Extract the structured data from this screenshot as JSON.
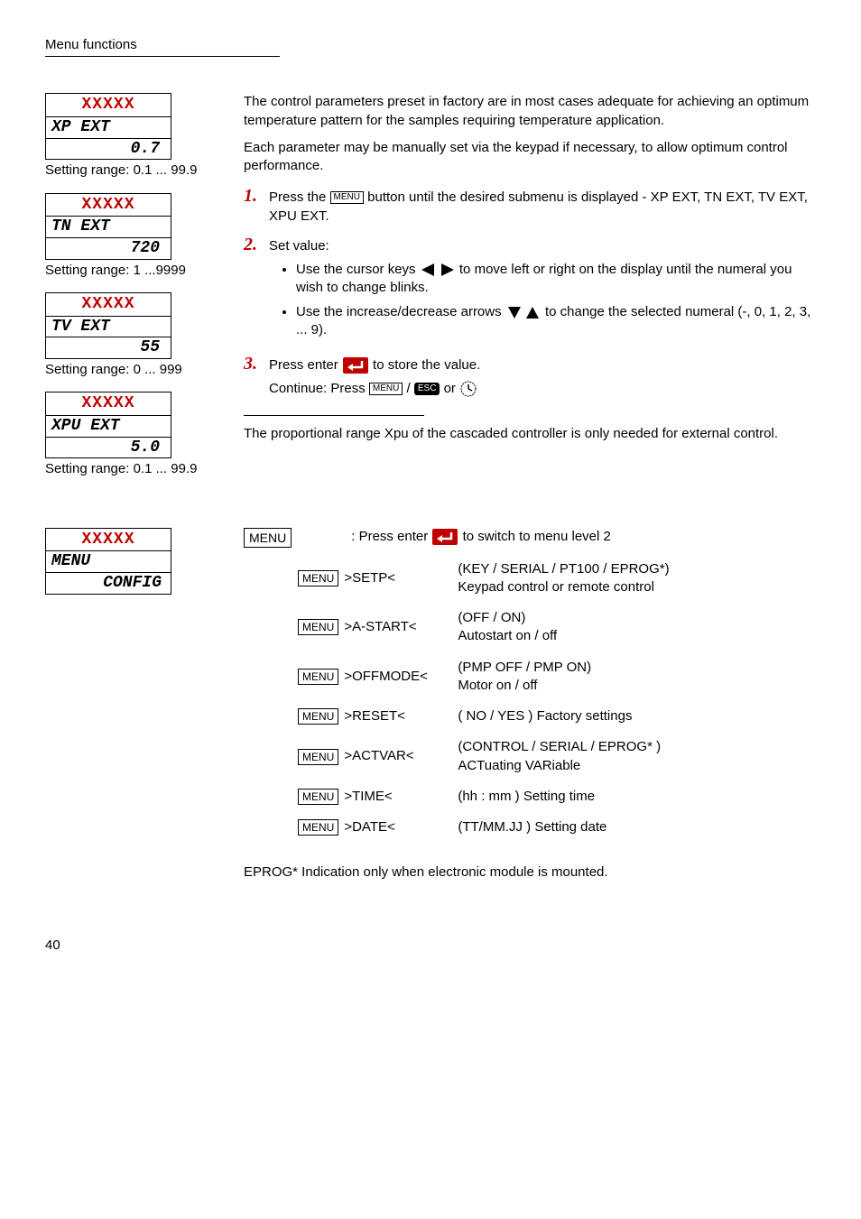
{
  "header": {
    "title": "Menu functions"
  },
  "lcd_boxes": [
    {
      "top": "XXXXX",
      "mid": "XP  EXT",
      "bot": "0.7",
      "range": "Setting range: 0.1 ... 99.9"
    },
    {
      "top": "XXXXX",
      "mid": "TN EXT",
      "bot": "720",
      "range": "Setting range: 1 ...9999"
    },
    {
      "top": "XXXXX",
      "mid": "TV  EXT",
      "bot": "55",
      "range": "Setting range: 0 ... 999"
    },
    {
      "top": "XXXXX",
      "mid": "XPU EXT",
      "bot": "5.0",
      "range": "Setting range: 0.1 ... 99.9"
    }
  ],
  "intro": {
    "p1": "The control parameters preset in factory are in most cases adequate for achieving an optimum temperature pattern for the samples requiring temperature application.",
    "p2": "Each parameter may be manually set via the keypad if necessary, to allow optimum control performance."
  },
  "steps": {
    "s1_pre": "Press the ",
    "s1_post": " button until the desired submenu is displayed - XP EXT, TN EXT, TV EXT, XPU EXT.",
    "s2": "Set value:",
    "s2_b1_pre": "Use the cursor keys ",
    "s2_b1_post": " to move left or right on the display until the numeral you wish to change blinks.",
    "s2_b2_pre": "Use the increase/decrease arrows ",
    "s2_b2_post": " to change the selected numeral (-, 0, 1, 2, 3, ... 9).",
    "s3_pre": "Press enter ",
    "s3_post": " to store the value.",
    "s3_cont_pre": "Continue: Press ",
    "s3_cont_mid": " / ",
    "s3_cont_post": " or "
  },
  "labels": {
    "menu": "MENU",
    "esc": "ESC"
  },
  "note": "The proportional range Xpu of the cascaded controller is only needed for external control.",
  "config_box": {
    "top": "XXXXX",
    "mid": "MENU",
    "bot": "CONFIG"
  },
  "menu_tree": {
    "root_text": ": Press enter ",
    "root_text2": " to switch to menu level 2",
    "items": [
      {
        "label": ">SETP<",
        "desc": "(KEY / SERIAL / PT100 / EPROG*)\nKeypad control or remote control"
      },
      {
        "label": ">A-START<",
        "desc": "(OFF / ON)\nAutostart on / off"
      },
      {
        "label": ">OFFMODE<",
        "desc": "(PMP OFF / PMP ON)\nMotor on / off"
      },
      {
        "label": ">RESET<",
        "desc": "( NO / YES ) Factory settings"
      },
      {
        "label": ">ACTVAR<",
        "desc": "(CONTROL / SERIAL / EPROG* )\nACTuating VARiable"
      },
      {
        "label": ">TIME<",
        "desc": "(hh : mm ) Setting time"
      },
      {
        "label": ">DATE<",
        "desc": "(TT/MM.JJ ) Setting date"
      }
    ]
  },
  "footnote": "EPROG*  Indication only when electronic module is mounted.",
  "page_number": "40",
  "colors": {
    "red": "#c00000",
    "black": "#000000"
  }
}
